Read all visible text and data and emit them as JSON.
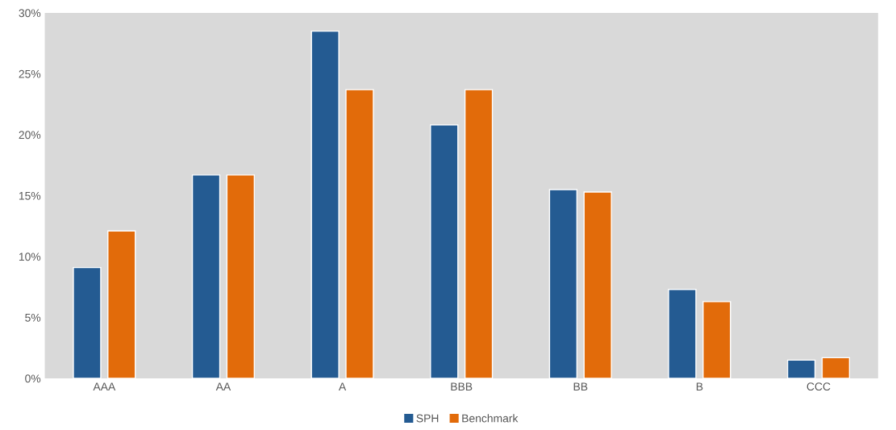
{
  "chart_data": {
    "type": "bar",
    "categories": [
      "AAA",
      "AA",
      "A",
      "BBB",
      "BB",
      "B",
      "CCC"
    ],
    "series": [
      {
        "name": "SPH",
        "color": "#245b92",
        "values": [
          9.1,
          16.7,
          28.5,
          20.8,
          15.5,
          7.3,
          1.5
        ]
      },
      {
        "name": "Benchmark",
        "color": "#e26b0a",
        "values": [
          12.1,
          16.7,
          23.7,
          23.7,
          15.3,
          6.3,
          1.7
        ]
      }
    ],
    "ylim": [
      0,
      30
    ],
    "yticks": [
      {
        "value": 0,
        "label": "0%"
      },
      {
        "value": 5,
        "label": "5%"
      },
      {
        "value": 10,
        "label": "10%"
      },
      {
        "value": 15,
        "label": "15%"
      },
      {
        "value": 20,
        "label": "20%"
      },
      {
        "value": 25,
        "label": "25%"
      },
      {
        "value": 30,
        "label": "30%"
      }
    ],
    "grid": false,
    "legend": "bottom"
  }
}
